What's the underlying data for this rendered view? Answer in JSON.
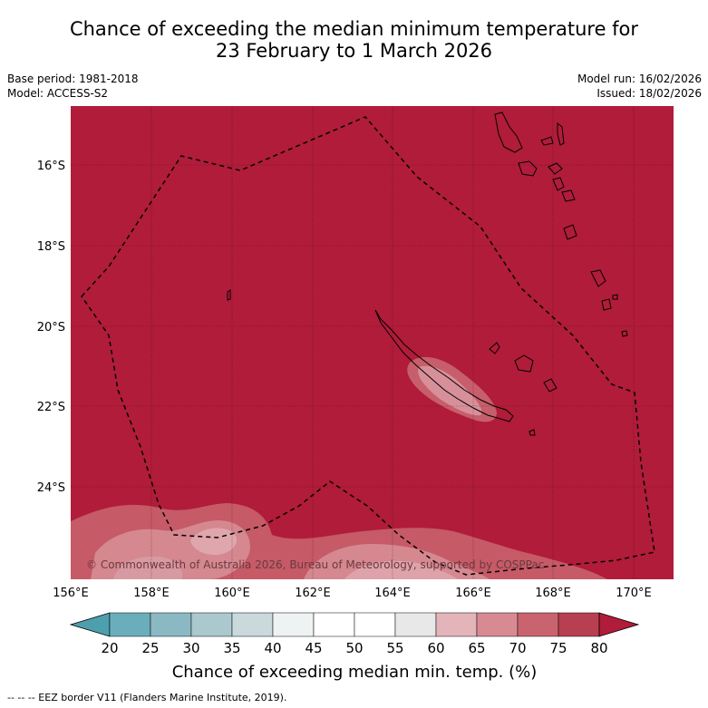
{
  "header": {
    "title_line1": "Chance of exceeding the median minimum temperature for",
    "title_line2": "23 February to 1 March 2026",
    "base_period": "Base period: 1981-2018",
    "model": "Model: ACCESS-S2",
    "model_run": "Model run: 16/02/2026",
    "issued": "Issued: 18/02/2026"
  },
  "map": {
    "background_color": "#b01c3a",
    "lat_labels": [
      "16°S",
      "18°S",
      "20°S",
      "22°S",
      "24°S"
    ],
    "lon_labels": [
      "156°E",
      "158°E",
      "160°E",
      "162°E",
      "164°E",
      "166°E",
      "168°E",
      "170°E"
    ],
    "credit": "© Commonwealth of Australia 2026, Bureau of Meteorology, supported by COSPPac"
  },
  "colorbar": {
    "ticks": [
      "20",
      "25",
      "30",
      "35",
      "40",
      "45",
      "50",
      "55",
      "60",
      "65",
      "70",
      "75",
      "80"
    ],
    "colors": [
      "#4d9fae",
      "#6aaebb",
      "#8bb9c3",
      "#aac8cd",
      "#c9d9dc",
      "#eef2f3",
      "#ffffff",
      "#ffffff",
      "#e8e8e8",
      "#e3b5bb",
      "#d88a93",
      "#c9646f",
      "#b83f50",
      "#b01c3a"
    ],
    "title": "Chance of exceeding median min. temp. (%)"
  },
  "footer": {
    "legend": "--  --  -- EEZ border V11 (Flanders Marine Institute, 2019)."
  }
}
